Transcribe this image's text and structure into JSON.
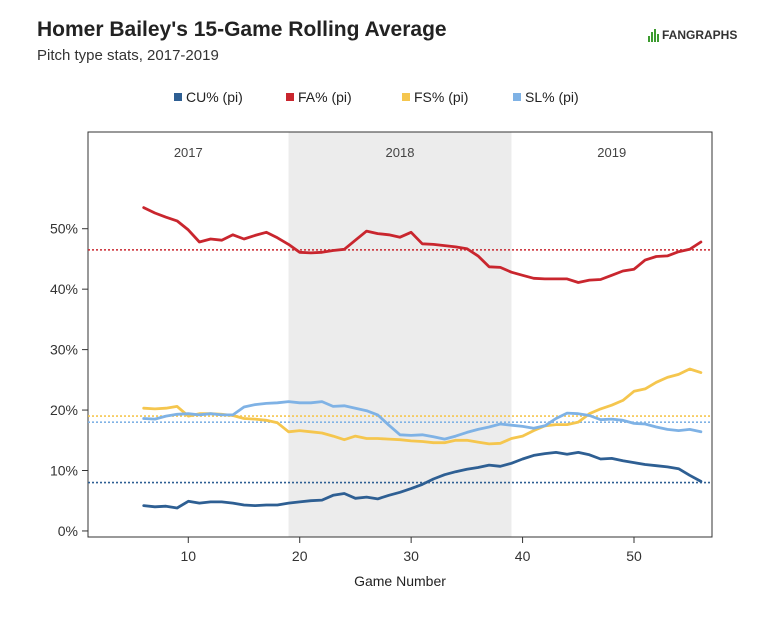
{
  "header": {
    "title": "Homer Bailey's 15-Game Rolling Average",
    "subtitle": "Pitch type stats, 2017-2019",
    "brand": "FANGRAPHS"
  },
  "colors": {
    "CU": "#2e5f93",
    "FA": "#c9262e",
    "FS": "#f5c64e",
    "SL": "#7fb2e5",
    "band": "#ececec"
  },
  "chart_data": {
    "type": "line",
    "xlabel": "Game Number",
    "ylabel": "",
    "xlim": [
      1,
      57
    ],
    "ylim": [
      -1,
      66
    ],
    "x_ticks": [
      10,
      20,
      30,
      40,
      50
    ],
    "y_ticks": [
      0,
      10,
      20,
      30,
      40,
      50
    ],
    "y_tick_labels": [
      "0%",
      "10%",
      "20%",
      "30%",
      "40%",
      "50%"
    ],
    "legend_position": "top",
    "grid": false,
    "seasons": [
      {
        "label": "2017",
        "start": 1,
        "end": 19
      },
      {
        "label": "2018",
        "start": 19,
        "end": 39
      },
      {
        "label": "2019",
        "start": 39,
        "end": 57
      }
    ],
    "x": [
      6,
      7,
      8,
      9,
      10,
      11,
      12,
      13,
      14,
      15,
      16,
      17,
      18,
      19,
      20,
      21,
      22,
      23,
      24,
      25,
      26,
      27,
      28,
      29,
      30,
      31,
      32,
      33,
      34,
      35,
      36,
      37,
      38,
      39,
      40,
      41,
      42,
      43,
      44,
      45,
      46,
      47,
      48,
      49,
      50,
      51,
      52,
      53,
      54,
      55,
      56
    ],
    "series": [
      {
        "name": "CU% (pi)",
        "key": "CU",
        "average": 8.0,
        "values": [
          4.2,
          4.0,
          4.1,
          3.8,
          4.9,
          4.6,
          4.8,
          4.8,
          4.6,
          4.3,
          4.2,
          4.3,
          4.3,
          4.6,
          4.8,
          5.0,
          5.1,
          5.9,
          6.2,
          5.4,
          5.6,
          5.3,
          5.9,
          6.4,
          7.0,
          7.7,
          8.6,
          9.3,
          9.8,
          10.2,
          10.5,
          10.9,
          10.7,
          11.2,
          11.9,
          12.5,
          12.8,
          13.0,
          12.7,
          13.0,
          12.6,
          11.9,
          12.0,
          11.6,
          11.3,
          11.0,
          10.8,
          10.6,
          10.3,
          9.2,
          8.2
        ]
      },
      {
        "name": "FA% (pi)",
        "key": "FA",
        "average": 46.5,
        "values": [
          53.5,
          52.6,
          51.9,
          51.3,
          49.8,
          47.8,
          48.3,
          48.1,
          49.0,
          48.3,
          48.9,
          49.4,
          48.5,
          47.4,
          46.1,
          46.0,
          46.1,
          46.4,
          46.6,
          48.1,
          49.6,
          49.2,
          49.0,
          48.6,
          49.4,
          47.5,
          47.4,
          47.2,
          47.0,
          46.7,
          45.5,
          43.7,
          43.6,
          42.8,
          42.3,
          41.8,
          41.7,
          41.7,
          41.7,
          41.1,
          41.5,
          41.6,
          42.3,
          43.0,
          43.3,
          44.8,
          45.4,
          45.5,
          46.2,
          46.6,
          47.8
        ]
      },
      {
        "name": "FS% (pi)",
        "key": "FS",
        "average": 19.0,
        "values": [
          20.3,
          20.2,
          20.3,
          20.6,
          19.0,
          19.4,
          19.4,
          19.3,
          19.1,
          18.6,
          18.5,
          18.3,
          17.9,
          16.4,
          16.6,
          16.4,
          16.2,
          15.7,
          15.1,
          15.7,
          15.3,
          15.3,
          15.2,
          15.1,
          14.9,
          14.8,
          14.6,
          14.6,
          15.0,
          15.0,
          14.7,
          14.4,
          14.5,
          15.3,
          15.7,
          16.6,
          17.4,
          17.6,
          17.6,
          18.0,
          19.4,
          20.2,
          20.8,
          21.6,
          23.1,
          23.5,
          24.6,
          25.4,
          25.9,
          26.8,
          26.2
        ]
      },
      {
        "name": "SL% (pi)",
        "key": "SL",
        "average": 18.0,
        "values": [
          18.6,
          18.5,
          19.0,
          19.3,
          19.4,
          19.2,
          19.4,
          19.2,
          19.2,
          20.5,
          20.9,
          21.1,
          21.2,
          21.4,
          21.2,
          21.2,
          21.4,
          20.6,
          20.7,
          20.3,
          19.9,
          19.2,
          17.5,
          15.9,
          15.8,
          15.9,
          15.6,
          15.2,
          15.7,
          16.3,
          16.8,
          17.2,
          17.7,
          17.5,
          17.3,
          17.0,
          17.4,
          18.6,
          19.5,
          19.4,
          19.1,
          18.4,
          18.5,
          18.3,
          17.8,
          17.7,
          17.2,
          16.8,
          16.6,
          16.8,
          16.4
        ]
      }
    ]
  }
}
